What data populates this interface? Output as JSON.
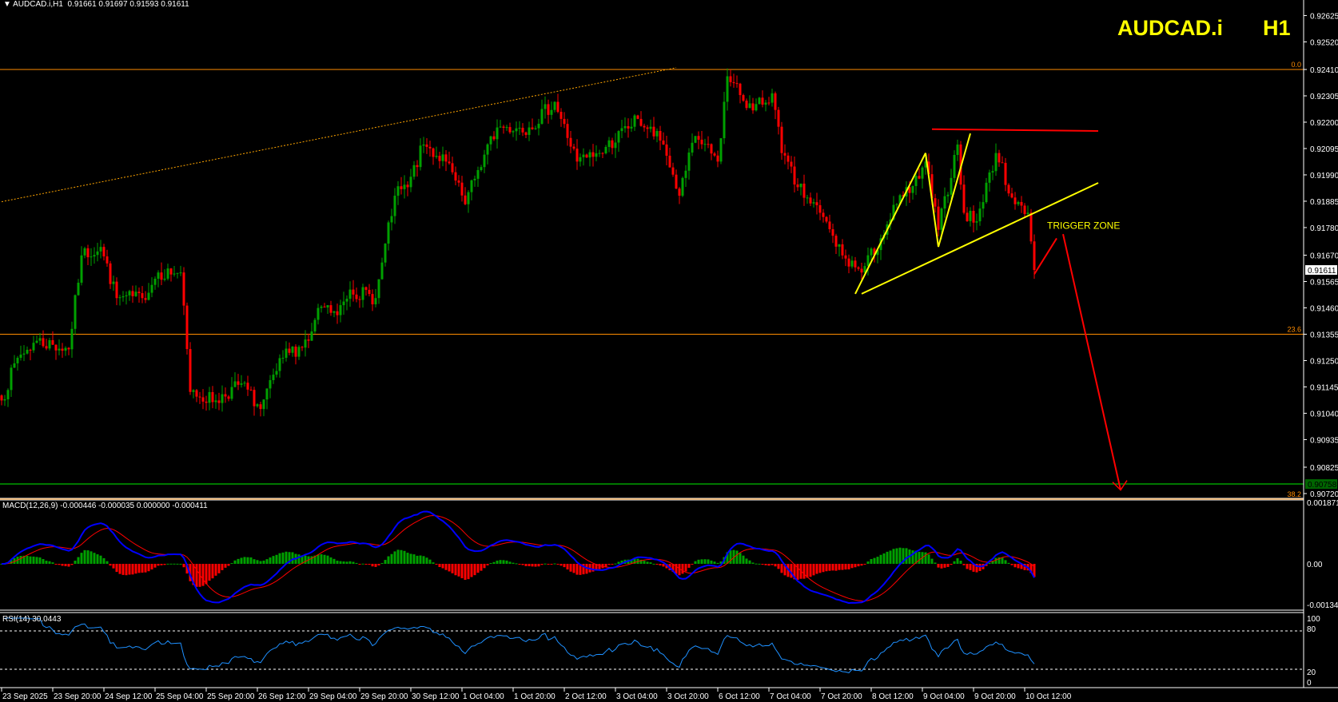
{
  "header": {
    "menu_icon": "triangle-down-icon",
    "symbol_timeframe": "AUDCAD.i,H1",
    "ohlc": "0.91661 0.91697 0.91593 0.91611",
    "big_symbol": "AUDCAD.i",
    "big_timeframe": "H1"
  },
  "colors": {
    "background": "#000000",
    "bull": "#00a000",
    "bear": "#ff0000",
    "axis": "#ffffff",
    "axis_text": "#ffffff",
    "fib": "#ff8c00",
    "target": "#00a000",
    "macd": "#0000ff",
    "signal": "#ff0000",
    "rsi": "#1e90ff",
    "annot_yellow": "#ffff00",
    "annot_red": "#ff0000"
  },
  "chart_data": {
    "type": "candlestick",
    "symbol": "AUDCAD.i",
    "timeframe": "H1",
    "start_time": "2025-09-23 04:00",
    "ylim": [
      0.9069,
      0.9268
    ],
    "price_ticks": [
      "0.92625",
      "0.92520",
      "0.92410",
      "0.92305",
      "0.92200",
      "0.92095",
      "0.91990",
      "0.91885",
      "0.91780",
      "0.91670",
      "0.91565",
      "0.91460",
      "0.91355",
      "0.91250",
      "0.91145",
      "0.91040",
      "0.90935",
      "0.90825",
      "0.90720"
    ],
    "current_price": "0.91611",
    "target_price": "0.90758",
    "time_ticks": [
      "23 Sep 2025",
      "23 Sep 20:00",
      "24 Sep 12:00",
      "25 Sep 04:00",
      "25 Sep 20:00",
      "26 Sep 12:00",
      "29 Sep 04:00",
      "29 Sep 20:00",
      "30 Sep 12:00",
      "1 Oct 04:00",
      "1 Oct 20:00",
      "2 Oct 12:00",
      "3 Oct 04:00",
      "3 Oct 20:00",
      "6 Oct 12:00",
      "7 Oct 04:00",
      "7 Oct 20:00",
      "8 Oct 12:00",
      "9 Oct 04:00",
      "9 Oct 20:00",
      "10 Oct 12:00"
    ],
    "close_waypoints": [
      [
        "2025-09-23 04:00",
        0.91091
      ],
      [
        "2025-09-23 09:00",
        0.91261
      ],
      [
        "2025-09-23 15:00",
        0.91329
      ],
      [
        "2025-09-24 01:00",
        0.91295
      ],
      [
        "2025-09-24 05:00",
        0.91669
      ],
      [
        "2025-09-24 11:00",
        0.91703
      ],
      [
        "2025-09-24 16:00",
        0.91499
      ],
      [
        "2025-09-25 00:00",
        0.91499
      ],
      [
        "2025-09-25 05:00",
        0.91601
      ],
      [
        "2025-09-25 12:00",
        0.91601
      ],
      [
        "2025-09-25 15:00",
        0.91125
      ],
      [
        "2025-09-25 23:00",
        0.91091
      ],
      [
        "2025-09-26 07:00",
        0.91159
      ],
      [
        "2025-09-26 13:00",
        0.91057
      ],
      [
        "2025-09-26 20:00",
        0.91261
      ],
      [
        "2025-09-29 04:00",
        0.91329
      ],
      [
        "2025-09-29 08:00",
        0.91465
      ],
      [
        "2025-09-29 13:00",
        0.91431
      ],
      [
        "2025-09-29 17:00",
        0.91533
      ],
      [
        "2025-09-30 01:00",
        0.91499
      ],
      [
        "2025-09-30 07:00",
        0.91907
      ],
      [
        "2025-09-30 11:00",
        0.91941
      ],
      [
        "2025-09-30 16:00",
        0.92111
      ],
      [
        "2025-09-30 23:00",
        0.92043
      ],
      [
        "2025-10-01 05:00",
        0.91873
      ],
      [
        "2025-10-01 09:00",
        0.92009
      ],
      [
        "2025-10-01 15:00",
        0.92179
      ],
      [
        "2025-10-02 01:00",
        0.92179
      ],
      [
        "2025-10-02 09:00",
        0.92281
      ],
      [
        "2025-10-02 16:00",
        0.92043
      ],
      [
        "2025-10-02 23:00",
        0.92077
      ],
      [
        "2025-10-03 11:00",
        0.92213
      ],
      [
        "2025-10-03 19:00",
        0.92111
      ],
      [
        "2025-10-06 00:00",
        0.91907
      ],
      [
        "2025-10-06 05:00",
        0.92145
      ],
      [
        "2025-10-06 12:00",
        0.92043
      ],
      [
        "2025-10-06 15:00",
        0.92383
      ],
      [
        "2025-10-06 23:00",
        0.92247
      ],
      [
        "2025-10-07 05:00",
        0.92315
      ],
      [
        "2025-10-07 08:00",
        0.92077
      ],
      [
        "2025-10-07 13:00",
        0.91941
      ],
      [
        "2025-10-07 20:00",
        0.91839
      ],
      [
        "2025-10-08 03:00",
        0.91669
      ],
      [
        "2025-10-08 09:00",
        0.91601
      ],
      [
        "2025-10-08 15:00",
        0.91737
      ],
      [
        "2025-10-08 20:00",
        0.91873
      ],
      [
        "2025-10-09 03:00",
        0.91975
      ],
      [
        "2025-10-09 05:00",
        0.92043
      ],
      [
        "2025-10-09 09:00",
        0.91771
      ],
      [
        "2025-10-09 15:00",
        0.92111
      ],
      [
        "2025-10-09 17:00",
        0.91839
      ],
      [
        "2025-10-09 21:00",
        0.91805
      ],
      [
        "2025-10-10 03:00",
        0.92077
      ],
      [
        "2025-10-10 09:00",
        0.91873
      ],
      [
        "2025-10-10 13:00",
        0.91839
      ],
      [
        "2025-10-10 15:00",
        0.91611
      ]
    ],
    "fib_levels": [
      {
        "label": "0.0",
        "price": 0.9241
      },
      {
        "label": "23.6",
        "price": 0.91355
      },
      {
        "label": "38.2",
        "price": 0.90698
      }
    ],
    "annotations": {
      "dotted_trendline": [
        [
          "2025-09-23 04:00",
          0.91883
        ],
        [
          "2025-10-03 23:00",
          0.92417
        ]
      ],
      "resistance_line": [
        [
          "2025-10-09 07:00",
          0.92172
        ],
        [
          "2025-10-13 11:00",
          0.92165
        ]
      ],
      "yellow_lines": [
        [
          [
            "2025-10-08 07:00",
            0.91516
          ],
          [
            "2025-10-09 05:00",
            0.92077
          ]
        ],
        [
          [
            "2025-10-09 05:00",
            0.92077
          ],
          [
            "2025-10-09 09:00",
            0.91703
          ]
        ],
        [
          [
            "2025-10-09 09:00",
            0.91703
          ],
          [
            "2025-10-09 19:00",
            0.92155
          ]
        ],
        [
          [
            "2025-10-08 09:00",
            0.91516
          ],
          [
            "2025-10-13 11:00",
            0.91958
          ]
        ]
      ],
      "red_lines": [
        [
          [
            "2025-10-10 15:00",
            0.91594
          ],
          [
            "2025-10-10 22:00",
            0.91737
          ]
        ],
        [
          [
            "2025-10-13 00:00",
            0.91754
          ],
          [
            "2025-10-13 18:00",
            0.90734
          ]
        ]
      ],
      "trigger_zone": {
        "text": "TRIGGER ZONE",
        "time": "2025-10-10 19:00",
        "price": 0.91775
      }
    },
    "macd": {
      "label": "MACD(12,26,9) -0.000446 -0.000035 0.000000 -0.000411",
      "ylim": [
        -0.001344,
        0.001871
      ],
      "ticks": [
        "0.001871",
        "0.00",
        "-0.001344"
      ]
    },
    "rsi": {
      "label": "RSI(14) 30.0443",
      "ylim": [
        0,
        100
      ],
      "levels": [
        80,
        20
      ],
      "ticks": [
        "100",
        "80",
        "20",
        "0"
      ]
    }
  }
}
